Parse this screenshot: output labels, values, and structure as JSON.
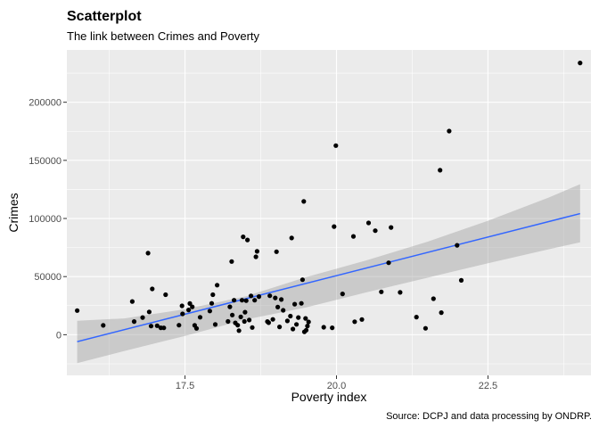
{
  "chart_data": {
    "type": "scatter",
    "title": "Scatterplot",
    "subtitle": "The link between Crimes and Poverty",
    "xlabel": "Poverty index",
    "ylabel": "Crimes",
    "caption": "Source: DCPJ and data processing by ONDRP.",
    "xlim": [
      15.55,
      24.2
    ],
    "ylim": [
      -35000,
      245000
    ],
    "x_ticks": [
      17.5,
      20.0,
      22.5
    ],
    "x_tick_labels": [
      "17.5",
      "20.0",
      "22.5"
    ],
    "y_ticks": [
      0,
      50000,
      100000,
      150000,
      200000
    ],
    "y_tick_labels": [
      "0",
      "50000",
      "100000",
      "150000",
      "200000"
    ],
    "grid": true,
    "point_color": "#000000",
    "line_color": "#3366ff",
    "band_color": "#999999",
    "panel_color": "#ebebeb",
    "points": [
      {
        "x": 15.72,
        "y": 20800
      },
      {
        "x": 16.15,
        "y": 8000
      },
      {
        "x": 16.63,
        "y": 28600
      },
      {
        "x": 16.66,
        "y": 11300
      },
      {
        "x": 16.8,
        "y": 14800
      },
      {
        "x": 16.89,
        "y": 70200
      },
      {
        "x": 16.91,
        "y": 19600
      },
      {
        "x": 16.94,
        "y": 7400
      },
      {
        "x": 16.96,
        "y": 39400
      },
      {
        "x": 17.04,
        "y": 7700
      },
      {
        "x": 17.1,
        "y": 6000
      },
      {
        "x": 17.15,
        "y": 5900
      },
      {
        "x": 17.18,
        "y": 34400
      },
      {
        "x": 17.4,
        "y": 8200
      },
      {
        "x": 17.45,
        "y": 24800
      },
      {
        "x": 17.46,
        "y": 17900
      },
      {
        "x": 17.56,
        "y": 21300
      },
      {
        "x": 17.58,
        "y": 26800
      },
      {
        "x": 17.62,
        "y": 24000
      },
      {
        "x": 17.66,
        "y": 8000
      },
      {
        "x": 17.69,
        "y": 5400
      },
      {
        "x": 17.75,
        "y": 15000
      },
      {
        "x": 17.91,
        "y": 20400
      },
      {
        "x": 17.94,
        "y": 27000
      },
      {
        "x": 17.96,
        "y": 34400
      },
      {
        "x": 18.0,
        "y": 8800
      },
      {
        "x": 18.03,
        "y": 42600
      },
      {
        "x": 18.21,
        "y": 11400
      },
      {
        "x": 18.24,
        "y": 24000
      },
      {
        "x": 18.27,
        "y": 63000
      },
      {
        "x": 18.28,
        "y": 16900
      },
      {
        "x": 18.31,
        "y": 29700
      },
      {
        "x": 18.33,
        "y": 10200
      },
      {
        "x": 18.37,
        "y": 8200
      },
      {
        "x": 18.39,
        "y": 3500
      },
      {
        "x": 18.42,
        "y": 15300
      },
      {
        "x": 18.44,
        "y": 29700
      },
      {
        "x": 18.46,
        "y": 84200
      },
      {
        "x": 18.48,
        "y": 11400
      },
      {
        "x": 18.49,
        "y": 19400
      },
      {
        "x": 18.51,
        "y": 29300
      },
      {
        "x": 18.53,
        "y": 81500
      },
      {
        "x": 18.56,
        "y": 12600
      },
      {
        "x": 18.59,
        "y": 33400
      },
      {
        "x": 18.61,
        "y": 6200
      },
      {
        "x": 18.65,
        "y": 29700
      },
      {
        "x": 18.67,
        "y": 67000
      },
      {
        "x": 18.69,
        "y": 71700
      },
      {
        "x": 18.72,
        "y": 32800
      },
      {
        "x": 18.86,
        "y": 11300
      },
      {
        "x": 18.88,
        "y": 10300
      },
      {
        "x": 18.9,
        "y": 33500
      },
      {
        "x": 18.95,
        "y": 13200
      },
      {
        "x": 18.99,
        "y": 31700
      },
      {
        "x": 19.01,
        "y": 71400
      },
      {
        "x": 19.03,
        "y": 23800
      },
      {
        "x": 19.06,
        "y": 6700
      },
      {
        "x": 19.09,
        "y": 30300
      },
      {
        "x": 19.12,
        "y": 21000
      },
      {
        "x": 19.19,
        "y": 11900
      },
      {
        "x": 19.24,
        "y": 16000
      },
      {
        "x": 19.26,
        "y": 83200
      },
      {
        "x": 19.28,
        "y": 4900
      },
      {
        "x": 19.31,
        "y": 26300
      },
      {
        "x": 19.34,
        "y": 8900
      },
      {
        "x": 19.37,
        "y": 14800
      },
      {
        "x": 19.42,
        "y": 27000
      },
      {
        "x": 19.44,
        "y": 47300
      },
      {
        "x": 19.46,
        "y": 114700
      },
      {
        "x": 19.47,
        "y": 2500
      },
      {
        "x": 19.49,
        "y": 14000
      },
      {
        "x": 19.5,
        "y": 3900
      },
      {
        "x": 19.52,
        "y": 7500
      },
      {
        "x": 19.54,
        "y": 11000
      },
      {
        "x": 19.79,
        "y": 6400
      },
      {
        "x": 19.93,
        "y": 6000
      },
      {
        "x": 19.96,
        "y": 93000
      },
      {
        "x": 19.99,
        "y": 162700
      },
      {
        "x": 20.1,
        "y": 35100
      },
      {
        "x": 20.28,
        "y": 84600
      },
      {
        "x": 20.3,
        "y": 11200
      },
      {
        "x": 20.42,
        "y": 13100
      },
      {
        "x": 20.53,
        "y": 96200
      },
      {
        "x": 20.64,
        "y": 89500
      },
      {
        "x": 20.74,
        "y": 36900
      },
      {
        "x": 20.86,
        "y": 61900
      },
      {
        "x": 20.9,
        "y": 92300
      },
      {
        "x": 21.05,
        "y": 36400
      },
      {
        "x": 21.32,
        "y": 15200
      },
      {
        "x": 21.47,
        "y": 5500
      },
      {
        "x": 21.6,
        "y": 31000
      },
      {
        "x": 21.71,
        "y": 141500
      },
      {
        "x": 21.73,
        "y": 19000
      },
      {
        "x": 21.86,
        "y": 175200
      },
      {
        "x": 21.99,
        "y": 76900
      },
      {
        "x": 22.06,
        "y": 46800
      },
      {
        "x": 24.02,
        "y": 233800
      }
    ],
    "trend_line": {
      "x": [
        15.72,
        24.02
      ],
      "y": [
        -6000,
        104200
      ]
    },
    "confidence_band": {
      "x": [
        15.72,
        16.5,
        17.5,
        18.5,
        19.5,
        20.5,
        21.5,
        22.5,
        23.5,
        24.02
      ],
      "upper": [
        12000,
        14000,
        22000,
        33000,
        49500,
        64000,
        80000,
        98000,
        118000,
        129500
      ],
      "lower": [
        -24500,
        -14000,
        -1000,
        13000,
        23500,
        36500,
        49000,
        61500,
        73500,
        79500
      ]
    }
  }
}
